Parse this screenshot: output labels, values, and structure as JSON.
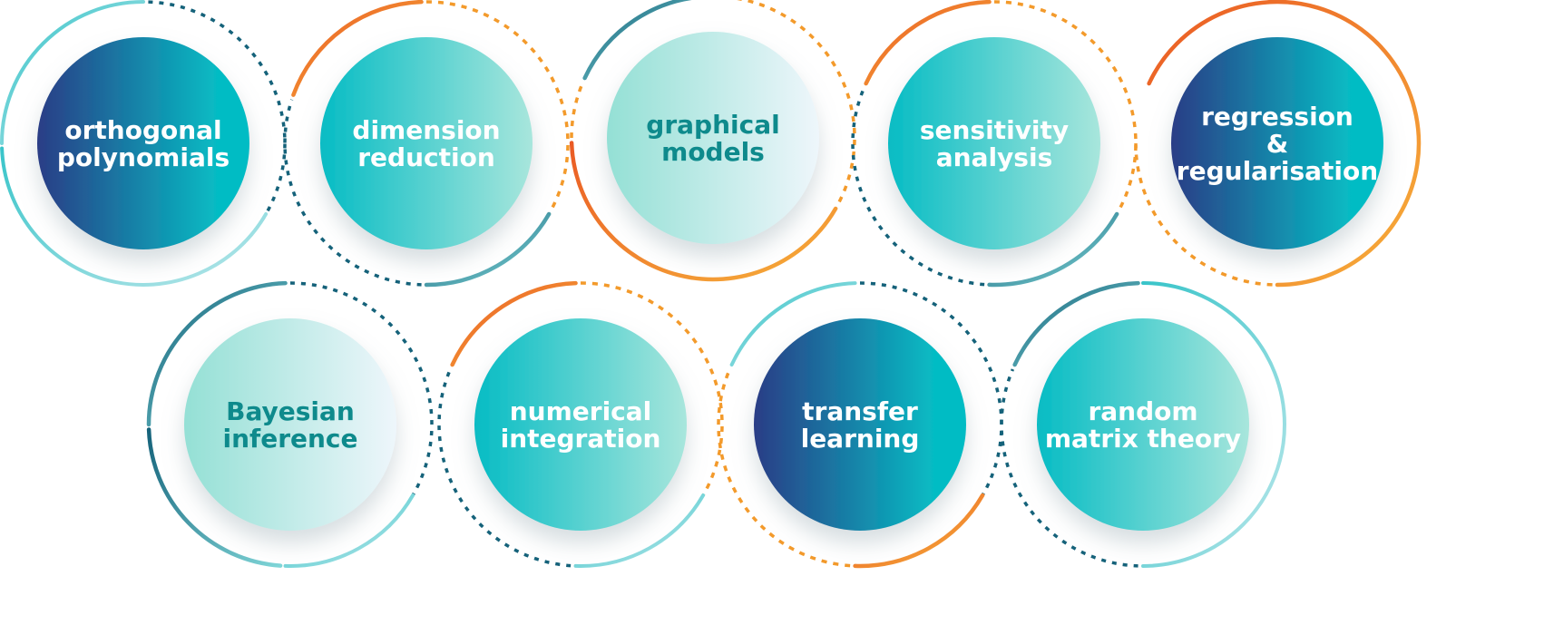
{
  "topics": [
    {
      "lines": [
        "orthogonal",
        "polynomials"
      ],
      "fill": "navy-teal",
      "ring": "teal",
      "text_color": "#ffffff"
    },
    {
      "lines": [
        "dimension",
        "reduction"
      ],
      "fill": "teal-mint",
      "ring": "orange",
      "text_color": "#ffffff"
    },
    {
      "lines": [
        "graphical",
        "models"
      ],
      "fill": "mint-white",
      "ring": "orange",
      "text_color": "#0e8a8c"
    },
    {
      "lines": [
        "sensitivity",
        "analysis"
      ],
      "fill": "teal-mint",
      "ring": "orange",
      "text_color": "#ffffff"
    },
    {
      "lines": [
        "regression",
        "&",
        "regularisation"
      ],
      "fill": "navy-teal",
      "ring": "orange",
      "text_color": "#ffffff"
    },
    {
      "lines": [
        "Bayesian",
        "inference"
      ],
      "fill": "mint-white",
      "ring": "teal",
      "text_color": "#0e8a8c"
    },
    {
      "lines": [
        "numerical",
        "integration"
      ],
      "fill": "teal-mint",
      "ring": "orange",
      "text_color": "#ffffff"
    },
    {
      "lines": [
        "transfer",
        "learning"
      ],
      "fill": "navy-teal",
      "ring": "orange",
      "text_color": "#ffffff"
    },
    {
      "lines": [
        "random",
        "matrix theory"
      ],
      "fill": "teal-mint",
      "ring": "teal",
      "text_color": "#ffffff"
    }
  ],
  "colors": {
    "navy": "#2a3d86",
    "teal": "#06bcc4",
    "mint": "#a8e6dc",
    "light": "#eef6fb",
    "orange": "#f39a2b",
    "orange_dark": "#ea5a24",
    "dark_teal": "#15627a"
  }
}
